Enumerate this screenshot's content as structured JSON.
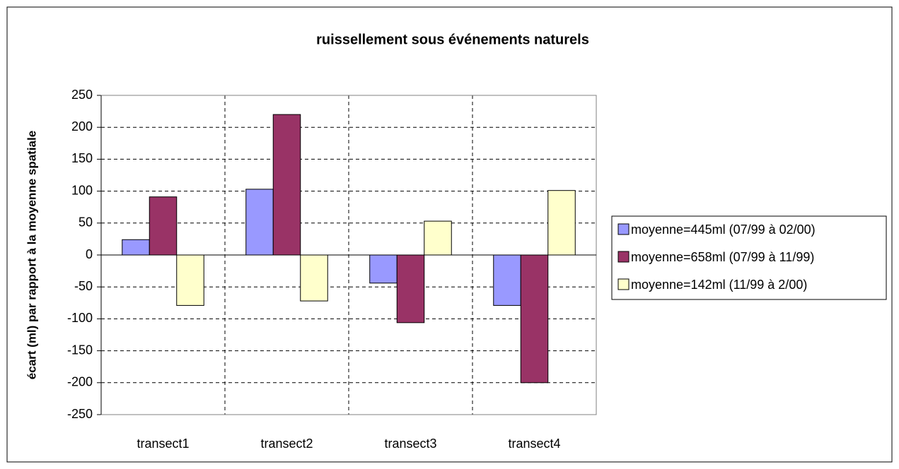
{
  "chart_data": {
    "type": "bar",
    "title": "ruissellement sous événements naturels",
    "y_label": "écart (ml) par rapport à la moyenne spatiale",
    "categories": [
      "transect1",
      "transect2",
      "transect3",
      "transect4"
    ],
    "series": [
      {
        "name": "moyenne=445ml (07/99 à 02/00)",
        "color": "#9999ff",
        "values": [
          24,
          103,
          -44,
          -79
        ]
      },
      {
        "name": "moyenne=658ml (07/99 à 11/99)",
        "color": "#993366",
        "values": [
          91,
          220,
          -106,
          -200
        ]
      },
      {
        "name": "moyenne=142ml (11/99 à 2/00)",
        "color": "#ffffcc",
        "values": [
          -79,
          -72,
          53,
          101
        ]
      }
    ],
    "ylim": [
      -250,
      250
    ],
    "yticks": [
      -250,
      -200,
      -150,
      -100,
      -50,
      0,
      50,
      100,
      150,
      200,
      250
    ],
    "grid": true,
    "legend": "right"
  }
}
